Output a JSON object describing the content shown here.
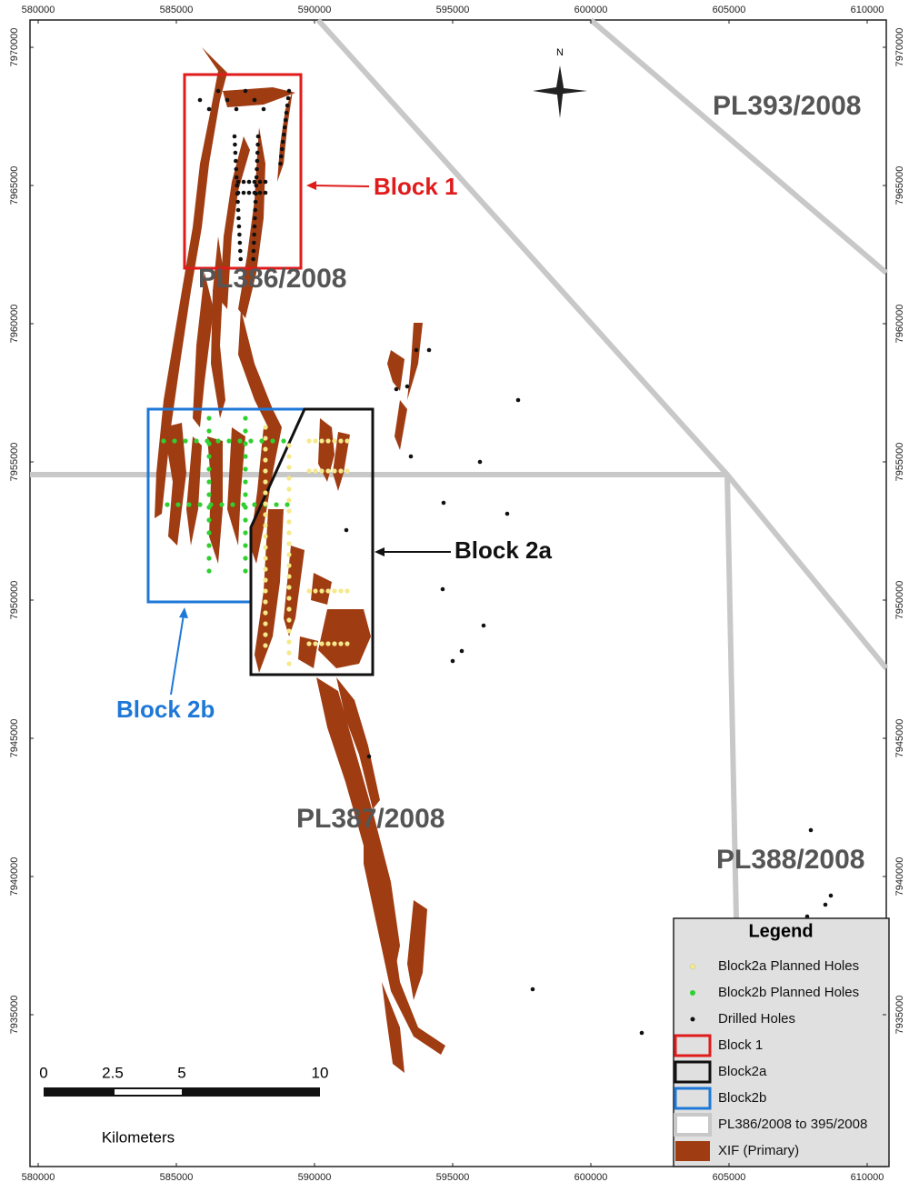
{
  "axes": {
    "x_ticks": [
      580000,
      585000,
      590000,
      595000,
      600000,
      605000,
      610000
    ],
    "y_ticks": [
      7970000,
      7965000,
      7960000,
      7955000,
      7950000,
      7945000,
      7940000,
      7935000
    ]
  },
  "labels": {
    "block1": "Block 1",
    "block2a": "Block 2a",
    "block2b": "Block 2b",
    "pl386": "PL386/2008",
    "pl387": "PL387/2008",
    "pl388": "PL388/2008",
    "pl393": "PL393/2008"
  },
  "north": "N",
  "legend": {
    "title": "Legend",
    "items": [
      "Block2a Planned Holes",
      "Block2b Planned Holes",
      "Drilled Holes",
      "Block 1",
      "Block2a",
      "Block2b",
      "PL386/2008 to 395/2008",
      "XIF (Primary)"
    ]
  },
  "scale_bar": {
    "ticks": [
      0,
      2.5,
      5,
      10
    ],
    "unit": "Kilometers"
  }
}
